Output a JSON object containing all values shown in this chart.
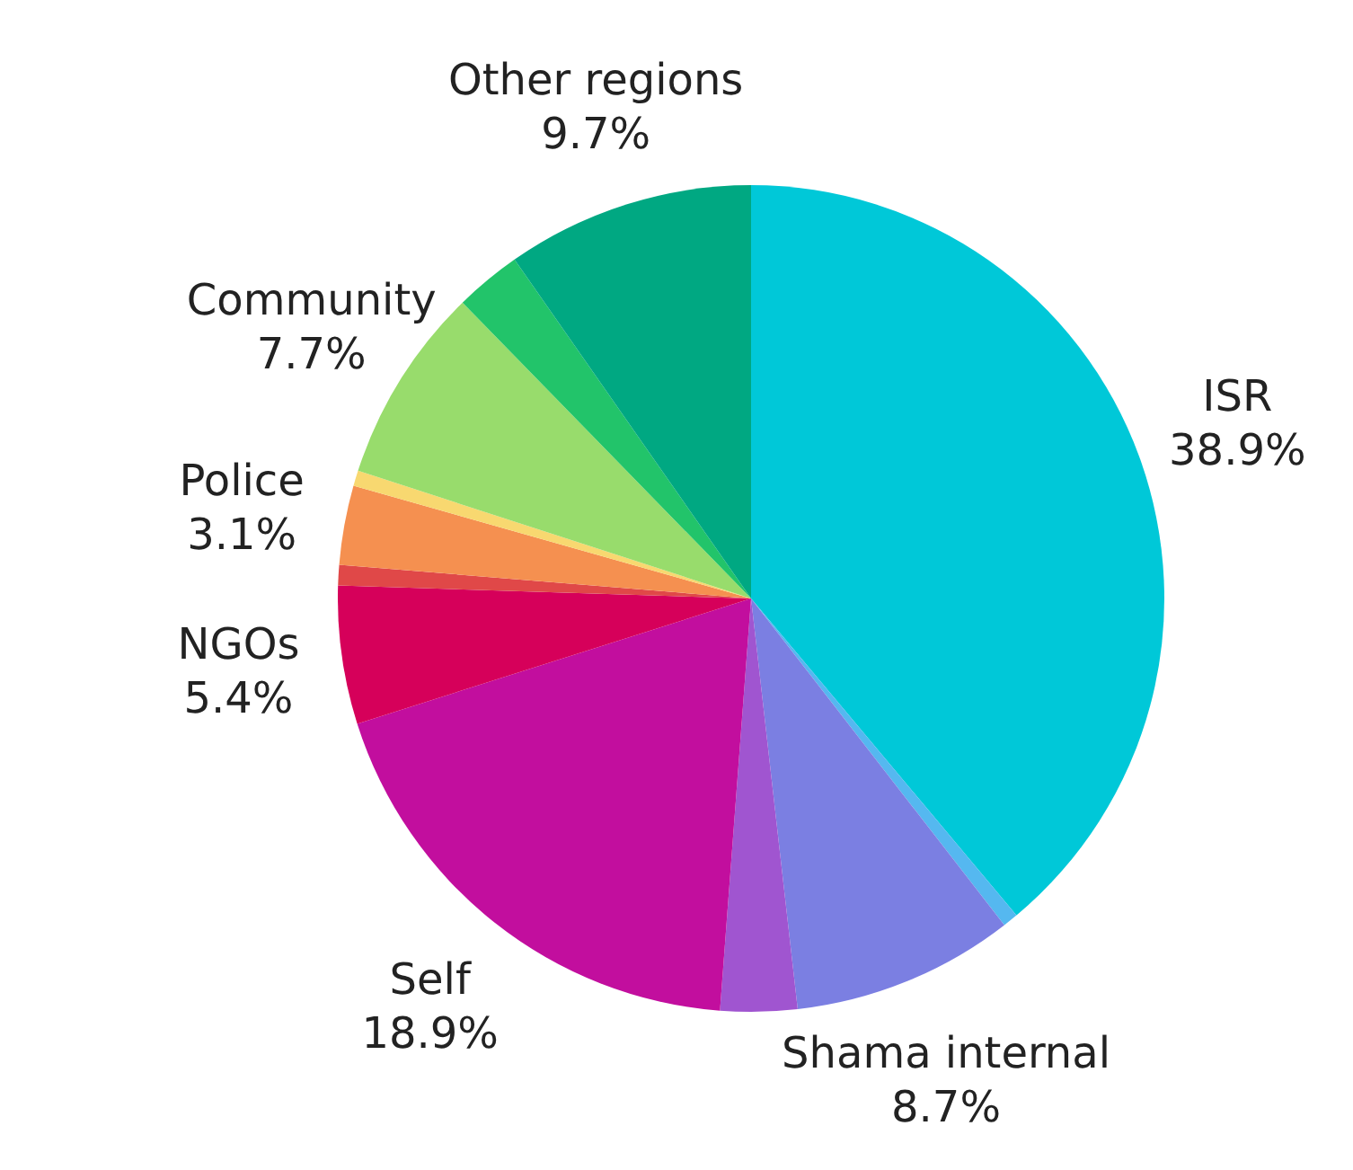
{
  "chart_data": {
    "type": "pie",
    "categories": [
      "ISR",
      null,
      "Shama internal",
      null,
      "Self",
      "NGOs",
      null,
      "Police",
      null,
      "Community",
      null,
      "Other regions"
    ],
    "values": [
      38.9,
      0.6,
      8.7,
      3.0,
      18.9,
      5.4,
      0.8,
      3.1,
      0.6,
      7.7,
      2.6,
      9.7
    ],
    "value_labels": [
      "38.9%",
      null,
      "8.7%",
      null,
      "18.9%",
      "5.4%",
      null,
      "3.1%",
      null,
      "7.7%",
      null,
      "9.7%"
    ],
    "colors": [
      "#00c8d8",
      "#55b8f0",
      "#7b7fe2",
      "#a055d0",
      "#c20e9e",
      "#d6005a",
      "#e04848",
      "#f59050",
      "#f8d870",
      "#98dc6c",
      "#22c46a",
      "#00a882"
    ]
  }
}
